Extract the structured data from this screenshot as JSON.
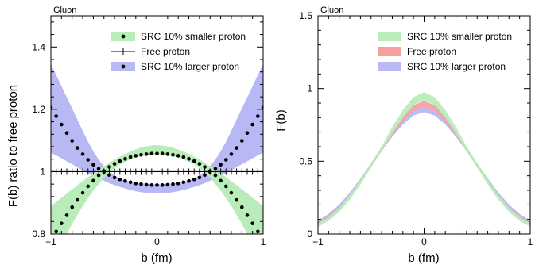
{
  "chart_data": [
    {
      "type": "line",
      "panel_label": "Gluon",
      "xlabel": "b (fm)",
      "ylabel": "F(b) ratio to free proton",
      "xlim": [
        -1,
        1
      ],
      "ylim": [
        0.8,
        1.5
      ],
      "xticks": [
        -1,
        0,
        1
      ],
      "yticks": [
        0.8,
        1,
        1.2,
        1.4
      ],
      "legend_position": "top-right",
      "legend": [
        {
          "label": "SRC 10% smaller proton",
          "color": "#b8ecb8",
          "marker": "dot-in-box"
        },
        {
          "label": "Free proton",
          "color": "#000000",
          "marker": "line-with-tick"
        },
        {
          "label": "SRC 10% larger proton",
          "color": "#b8b8f4",
          "marker": "dot-in-box"
        }
      ],
      "x": [
        -1.0,
        -0.95,
        -0.9,
        -0.85,
        -0.8,
        -0.75,
        -0.7,
        -0.65,
        -0.6,
        -0.55,
        -0.5,
        -0.45,
        -0.4,
        -0.35,
        -0.3,
        -0.25,
        -0.2,
        -0.15,
        -0.1,
        -0.05,
        0.0,
        0.05,
        0.1,
        0.15,
        0.2,
        0.25,
        0.3,
        0.35,
        0.4,
        0.45,
        0.5,
        0.55,
        0.6,
        0.65,
        0.7,
        0.75,
        0.8,
        0.85,
        0.9,
        0.95,
        1.0
      ],
      "series": [
        {
          "name": "SRC 10% smaller proton",
          "color": "#b8ecb8",
          "values": [
            0.782,
            0.808,
            0.834,
            0.86,
            0.886,
            0.909,
            0.932,
            0.953,
            0.971,
            0.988,
            1.002,
            1.015,
            1.025,
            1.034,
            1.041,
            1.047,
            1.051,
            1.054,
            1.056,
            1.058,
            1.058,
            1.058,
            1.056,
            1.054,
            1.051,
            1.047,
            1.041,
            1.034,
            1.025,
            1.015,
            1.002,
            0.988,
            0.971,
            0.953,
            0.932,
            0.909,
            0.886,
            0.86,
            0.834,
            0.808,
            0.782
          ],
          "band_lower": [
            0.705,
            0.737,
            0.769,
            0.8,
            0.832,
            0.861,
            0.889,
            0.915,
            0.939,
            0.96,
            0.98,
            0.997,
            1.011,
            1.023,
            1.032,
            1.039,
            1.045,
            1.049,
            1.052,
            1.053,
            1.054,
            1.053,
            1.052,
            1.049,
            1.045,
            1.039,
            1.032,
            1.023,
            1.011,
            0.997,
            0.98,
            0.96,
            0.939,
            0.915,
            0.889,
            0.861,
            0.832,
            0.8,
            0.769,
            0.737,
            0.705
          ],
          "band_upper": [
            0.89,
            0.903,
            0.916,
            0.93,
            0.943,
            0.957,
            0.969,
            0.982,
            0.994,
            1.006,
            1.018,
            1.028,
            1.039,
            1.048,
            1.057,
            1.064,
            1.071,
            1.077,
            1.081,
            1.084,
            1.085,
            1.084,
            1.081,
            1.077,
            1.071,
            1.064,
            1.057,
            1.048,
            1.039,
            1.028,
            1.018,
            1.006,
            0.994,
            0.982,
            0.969,
            0.957,
            0.943,
            0.93,
            0.916,
            0.903,
            0.89
          ]
        },
        {
          "name": "Free proton",
          "color": "#000000",
          "values": [
            1.0,
            1.0,
            1.0,
            1.0,
            1.0,
            1.0,
            1.0,
            1.0,
            1.0,
            1.0,
            1.0,
            1.0,
            1.0,
            1.0,
            1.0,
            1.0,
            1.0,
            1.0,
            1.0,
            1.0,
            1.0,
            1.0,
            1.0,
            1.0,
            1.0,
            1.0,
            1.0,
            1.0,
            1.0,
            1.0,
            1.0,
            1.0,
            1.0,
            1.0,
            1.0,
            1.0,
            1.0,
            1.0,
            1.0,
            1.0,
            1.0
          ]
        },
        {
          "name": "SRC 10% larger proton",
          "color": "#b8b8f4",
          "values": [
            1.205,
            1.178,
            1.151,
            1.124,
            1.099,
            1.076,
            1.056,
            1.038,
            1.022,
            1.009,
            0.999,
            0.989,
            0.981,
            0.975,
            0.97,
            0.966,
            0.962,
            0.96,
            0.958,
            0.957,
            0.957,
            0.957,
            0.958,
            0.96,
            0.962,
            0.966,
            0.97,
            0.975,
            0.981,
            0.989,
            0.999,
            1.009,
            1.022,
            1.038,
            1.056,
            1.076,
            1.099,
            1.124,
            1.151,
            1.178,
            1.205
          ],
          "band_lower": [
            1.061,
            1.052,
            1.043,
            1.033,
            1.024,
            1.014,
            1.004,
            0.995,
            0.987,
            0.979,
            0.971,
            0.963,
            0.957,
            0.951,
            0.946,
            0.941,
            0.937,
            0.934,
            0.932,
            0.93,
            0.93,
            0.93,
            0.932,
            0.934,
            0.937,
            0.941,
            0.946,
            0.951,
            0.957,
            0.963,
            0.971,
            0.979,
            0.987,
            0.995,
            1.004,
            1.014,
            1.024,
            1.033,
            1.043,
            1.052,
            1.061
          ],
          "band_upper": [
            1.345,
            1.31,
            1.274,
            1.238,
            1.203,
            1.167,
            1.131,
            1.096,
            1.065,
            1.039,
            1.017,
            1.0,
            0.988,
            0.978,
            0.972,
            0.967,
            0.964,
            0.962,
            0.961,
            0.96,
            0.96,
            0.96,
            0.961,
            0.962,
            0.964,
            0.967,
            0.972,
            0.978,
            0.988,
            1.0,
            1.017,
            1.039,
            1.065,
            1.096,
            1.131,
            1.167,
            1.203,
            1.238,
            1.274,
            1.31,
            1.345
          ]
        }
      ]
    },
    {
      "type": "area",
      "panel_label": "Gluon",
      "xlabel": "b (fm)",
      "ylabel": "F(b)",
      "xlim": [
        -1,
        1
      ],
      "ylim": [
        0,
        1.5
      ],
      "xticks": [
        -1,
        0,
        1
      ],
      "yticks": [
        0,
        0.5,
        1,
        1.5
      ],
      "legend_position": "top-right",
      "legend": [
        {
          "label": "SRC 10% smaller proton",
          "color": "#b8ecb8"
        },
        {
          "label": "Free proton",
          "color": "#f4a0a0"
        },
        {
          "label": "SRC 10% larger proton",
          "color": "#b8b8f4"
        }
      ],
      "x": [
        -1.0,
        -0.9,
        -0.8,
        -0.7,
        -0.6,
        -0.5,
        -0.4,
        -0.3,
        -0.2,
        -0.1,
        0.0,
        0.1,
        0.2,
        0.3,
        0.4,
        0.5,
        0.6,
        0.7,
        0.8,
        0.9,
        1.0
      ],
      "series": [
        {
          "name": "SRC 10% smaller proton",
          "color": "#b8ecb8",
          "band_lower": [
            0.05,
            0.089,
            0.151,
            0.236,
            0.341,
            0.456,
            0.569,
            0.688,
            0.8,
            0.887,
            0.92,
            0.887,
            0.8,
            0.688,
            0.569,
            0.456,
            0.341,
            0.236,
            0.151,
            0.089,
            0.05
          ],
          "band_upper": [
            0.072,
            0.116,
            0.181,
            0.268,
            0.374,
            0.487,
            0.602,
            0.735,
            0.852,
            0.941,
            0.975,
            0.941,
            0.852,
            0.735,
            0.602,
            0.487,
            0.374,
            0.268,
            0.181,
            0.116,
            0.072
          ]
        },
        {
          "name": "Free proton",
          "color": "#f4a0a0",
          "band_lower": [
            0.063,
            0.104,
            0.166,
            0.249,
            0.35,
            0.459,
            0.569,
            0.678,
            0.774,
            0.847,
            0.875,
            0.847,
            0.774,
            0.678,
            0.569,
            0.459,
            0.35,
            0.249,
            0.166,
            0.104,
            0.063
          ],
          "band_upper": [
            0.078,
            0.122,
            0.185,
            0.269,
            0.372,
            0.482,
            0.591,
            0.707,
            0.809,
            0.886,
            0.915,
            0.886,
            0.809,
            0.707,
            0.591,
            0.482,
            0.372,
            0.269,
            0.185,
            0.122,
            0.078
          ]
        },
        {
          "name": "SRC 10% larger proton",
          "color": "#b8b8f4",
          "band_lower": [
            0.069,
            0.112,
            0.174,
            0.256,
            0.355,
            0.462,
            0.569,
            0.668,
            0.752,
            0.814,
            0.838,
            0.814,
            0.752,
            0.668,
            0.569,
            0.462,
            0.355,
            0.256,
            0.174,
            0.112,
            0.069
          ],
          "band_upper": [
            0.092,
            0.138,
            0.202,
            0.284,
            0.382,
            0.487,
            0.592,
            0.694,
            0.785,
            0.851,
            0.876,
            0.851,
            0.785,
            0.694,
            0.592,
            0.487,
            0.382,
            0.284,
            0.202,
            0.138,
            0.092
          ]
        }
      ]
    }
  ]
}
